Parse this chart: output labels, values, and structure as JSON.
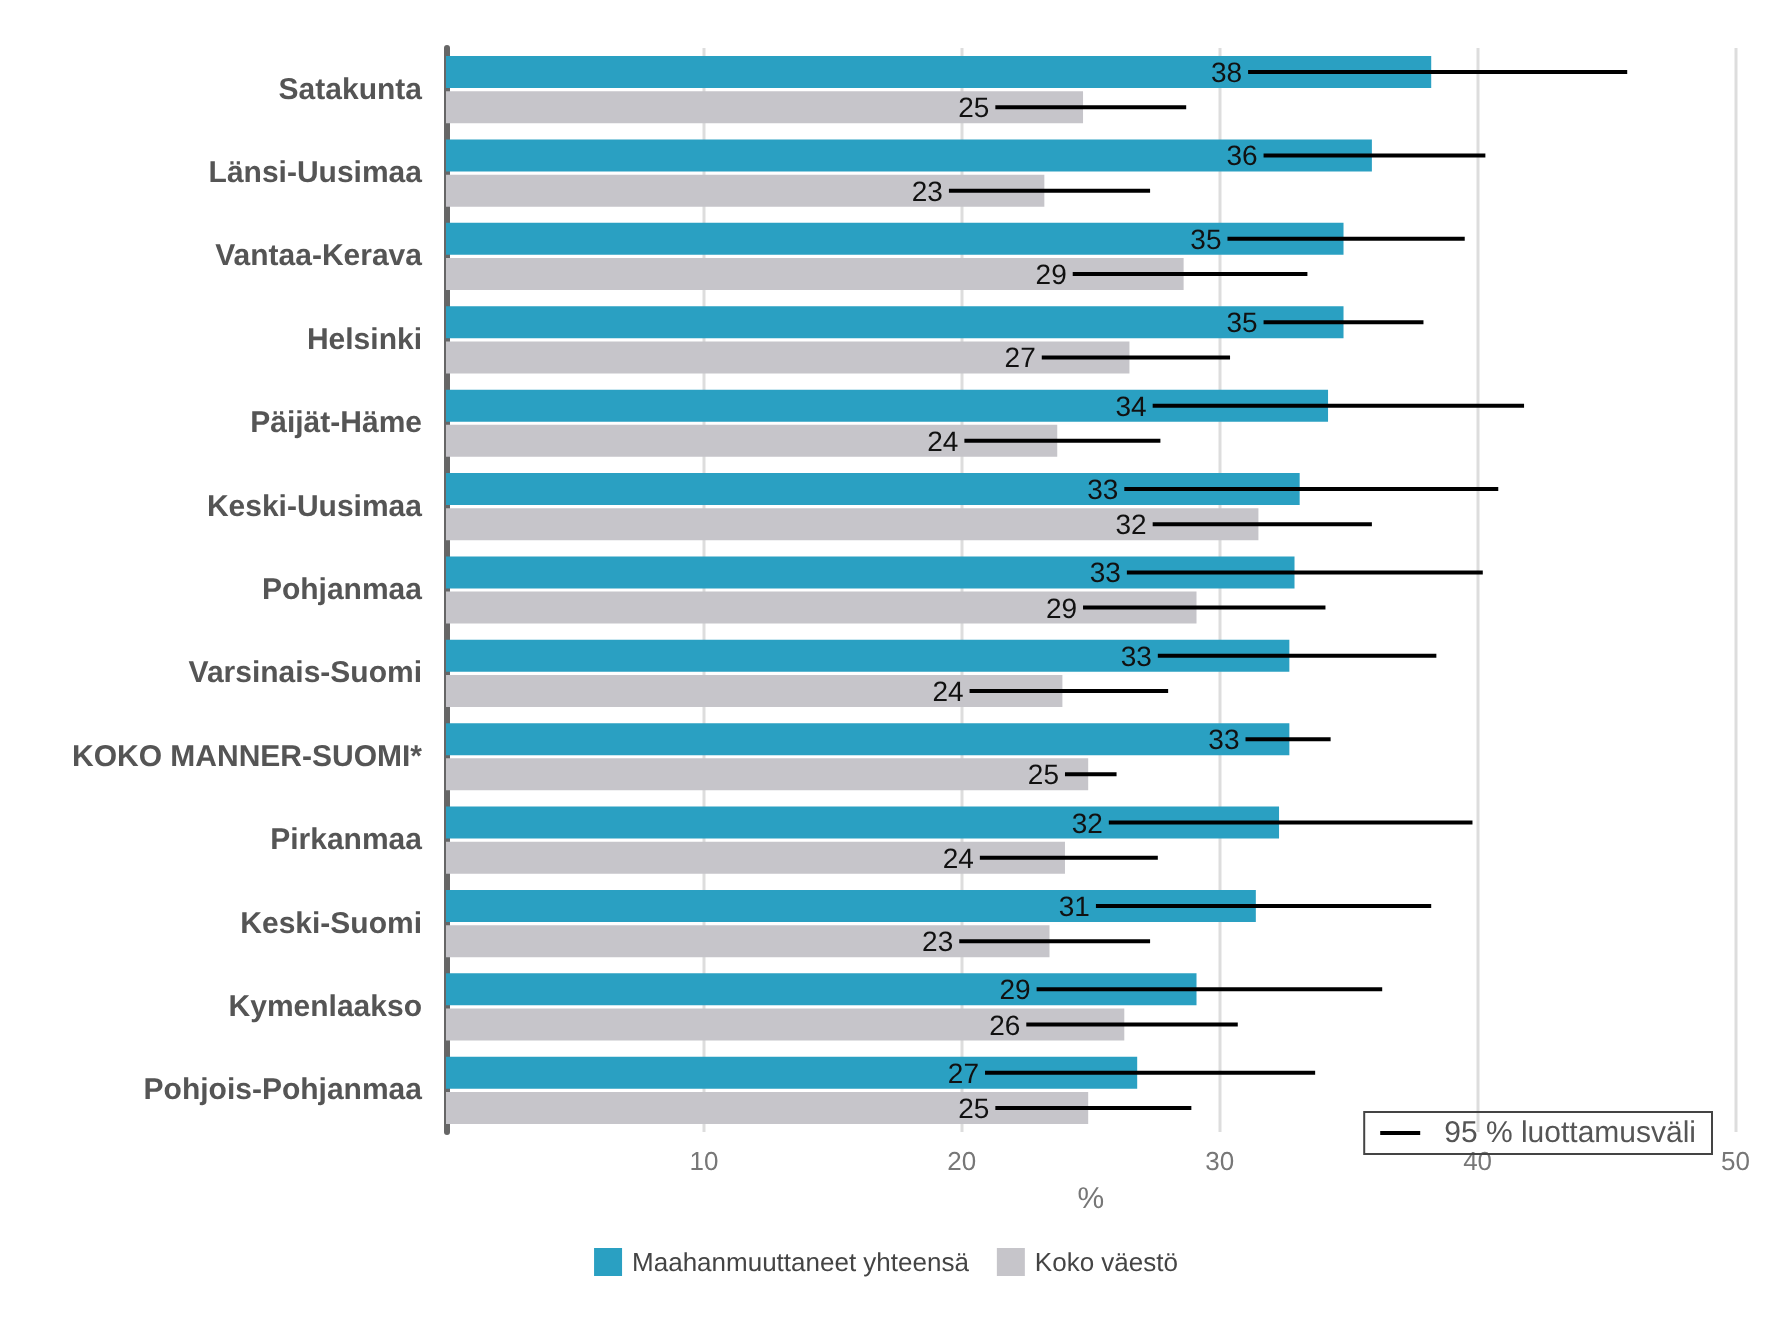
{
  "chart_data": {
    "type": "bar",
    "orientation": "horizontal",
    "categories": [
      "Satakunta",
      "Länsi-Uusimaa",
      "Vantaa-Kerava",
      "Helsinki",
      "Päijät-Häme",
      "Keski-Uusimaa",
      "Pohjanmaa",
      "Varsinais-Suomi",
      "KOKO MANNER-SUOMI*",
      "Pirkanmaa",
      "Keski-Suomi",
      "Kymenlaakso",
      "Pohjois-Pohjanmaa"
    ],
    "series": [
      {
        "name": "Maahanmuuttaneet yhteensä",
        "color": "#2aa0c2",
        "values": [
          38.2,
          35.9,
          34.8,
          34.8,
          34.2,
          33.1,
          32.9,
          32.7,
          32.7,
          32.3,
          31.4,
          29.1,
          26.8
        ],
        "value_labels": [
          "38",
          "36",
          "35",
          "35",
          "34",
          "33",
          "33",
          "33",
          "33",
          "32",
          "31",
          "29",
          "27"
        ],
        "errors": [
          [
            31.1,
            45.8
          ],
          [
            31.7,
            40.3
          ],
          [
            30.3,
            39.5
          ],
          [
            31.7,
            37.9
          ],
          [
            27.4,
            41.8
          ],
          [
            26.3,
            40.8
          ],
          [
            26.4,
            40.2
          ],
          [
            27.6,
            38.4
          ],
          [
            31.0,
            34.3
          ],
          [
            25.7,
            39.8
          ],
          [
            25.2,
            38.2
          ],
          [
            22.9,
            36.3
          ],
          [
            20.9,
            33.7
          ]
        ]
      },
      {
        "name": "Koko väestö",
        "color": "#c6c5ca",
        "values": [
          24.7,
          23.2,
          28.6,
          26.5,
          23.7,
          31.5,
          29.1,
          23.9,
          24.9,
          24.0,
          23.4,
          26.3,
          24.9
        ],
        "value_labels": [
          "25",
          "23",
          "29",
          "27",
          "24",
          "32",
          "29",
          "24",
          "25",
          "24",
          "23",
          "26",
          "25"
        ],
        "errors": [
          [
            21.3,
            28.7
          ],
          [
            19.5,
            27.3
          ],
          [
            24.3,
            33.4
          ],
          [
            23.1,
            30.4
          ],
          [
            20.1,
            27.7
          ],
          [
            27.4,
            35.9
          ],
          [
            24.7,
            34.1
          ],
          [
            20.3,
            28.0
          ],
          [
            24.0,
            26.0
          ],
          [
            20.7,
            27.6
          ],
          [
            19.9,
            27.3
          ],
          [
            22.5,
            30.7
          ],
          [
            21.3,
            28.9
          ]
        ]
      }
    ],
    "xlabel": "%",
    "xlim": [
      0,
      50
    ],
    "xticks": [
      10,
      20,
      30,
      40,
      50
    ],
    "grid": "x",
    "legend": "bottom",
    "annotations": [
      "95 % luottamusväli"
    ]
  }
}
